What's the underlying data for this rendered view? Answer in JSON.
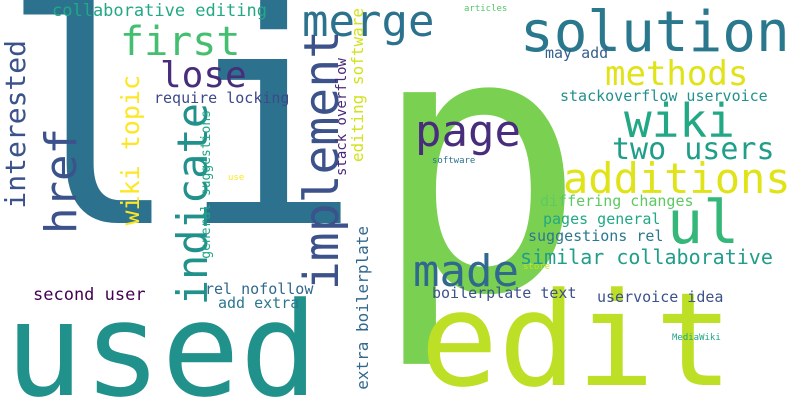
{
  "words": {
    "li": {
      "text": "li",
      "color": "#2c728e"
    },
    "p": {
      "text": "p",
      "color": "#7ad151"
    },
    "used": {
      "text": "used",
      "color": "#21918c"
    },
    "edit": {
      "text": "edit",
      "color": "#bddf26"
    },
    "solution": {
      "text": "solution",
      "color": "#2a788e"
    },
    "merge": {
      "text": "merge",
      "color": "#2c728e"
    },
    "first": {
      "text": "first",
      "color": "#44bf70"
    },
    "collaborative_editing": {
      "text": "collaborative editing",
      "color": "#22a884"
    },
    "lose": {
      "text": "lose",
      "color": "#472d7b"
    },
    "methods": {
      "text": "methods",
      "color": "#dfe318"
    },
    "interested": {
      "text": "interested",
      "color": "#3b528b"
    },
    "href": {
      "text": "href",
      "color": "#3b528b"
    },
    "implement": {
      "text": "implement",
      "color": "#3b528b"
    },
    "indicate": {
      "text": "indicate",
      "color": "#21918c"
    },
    "wiki_topic": {
      "text": "wiki topic",
      "color": "#fde725"
    },
    "page": {
      "text": "page",
      "color": "#472d7b"
    },
    "wiki": {
      "text": "wiki",
      "color": "#22a884"
    },
    "two_users": {
      "text": "two users",
      "color": "#1f9e89"
    },
    "additions": {
      "text": "additions",
      "color": "#dfe318"
    },
    "ul": {
      "text": "ul",
      "color": "#35b779"
    },
    "made": {
      "text": "made",
      "color": "#31688e"
    },
    "similar_collaborative": {
      "text": "similar collaborative",
      "color": "#1f9e89"
    },
    "second_user": {
      "text": "second user",
      "color": "#440154"
    },
    "rel_nofollow": {
      "text": "rel nofollow",
      "color": "#31688e"
    },
    "add_extra": {
      "text": "add extra",
      "color": "#2a788e"
    },
    "boilerplate_text": {
      "text": "boilerplate text",
      "color": "#3b528b"
    },
    "uservoice_idea": {
      "text": "uservoice idea",
      "color": "#3b528b"
    },
    "require_locking": {
      "text": "require locking",
      "color": "#3e4989"
    },
    "may_add": {
      "text": "may add",
      "color": "#355f8d"
    },
    "stackoverflow_uservoice": {
      "text": "stackoverflow uservoice",
      "color": "#21918c"
    },
    "differing_changes": {
      "text": "differing changes",
      "color": "#5ec962"
    },
    "pages_general": {
      "text": "pages general",
      "color": "#22a884"
    },
    "suggestions_rel": {
      "text": "suggestions rel",
      "color": "#2a788e"
    },
    "articles": {
      "text": "articles",
      "color": "#52c569"
    },
    "software": {
      "text": "software",
      "color": "#2c728e"
    },
    "use": {
      "text": "use",
      "color": "#fde725"
    },
    "store": {
      "text": "store",
      "color": "#c8e020"
    },
    "mediawiki": {
      "text": "MediaWiki",
      "color": "#20a486"
    },
    "general_suggestions": {
      "text": "general suggestions",
      "color": "#20a486"
    },
    "stack_overflow": {
      "text": "stack overflow",
      "color": "#482878"
    },
    "editing_software": {
      "text": "editing software",
      "color": "#d2e21b"
    },
    "extra_boilerplate": {
      "text": "extra boilerplate",
      "color": "#31688e"
    }
  }
}
